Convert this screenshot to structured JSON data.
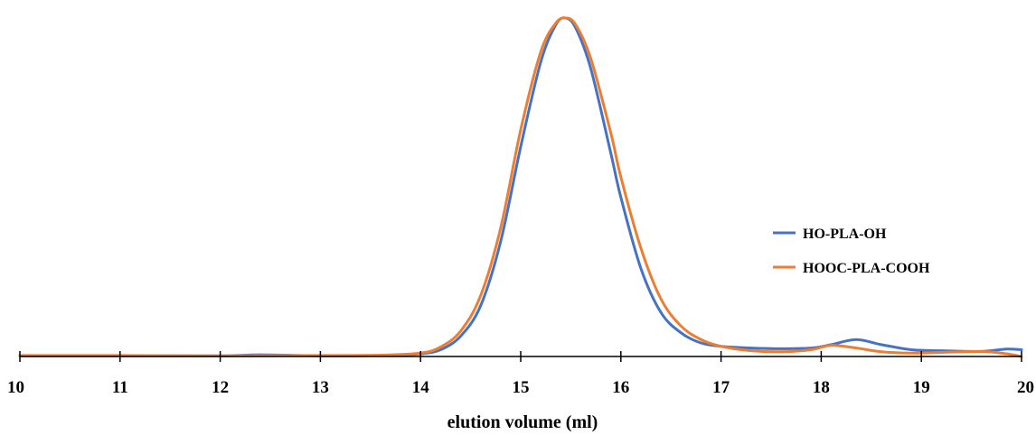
{
  "chart_data": {
    "type": "line",
    "title": "",
    "xlabel": "elution volume (ml)",
    "ylabel": "",
    "xlim": [
      10,
      20
    ],
    "ylim": [
      0,
      1
    ],
    "x_ticks": [
      "10",
      "11",
      "12",
      "13",
      "14",
      "15",
      "16",
      "17",
      "18",
      "19",
      "20"
    ],
    "grid": false,
    "legend": "center-right",
    "series": [
      {
        "name": "HO-PLA-OH",
        "color": "#4472C4",
        "x": [
          10,
          11,
          12,
          12.4,
          13,
          13.6,
          14,
          14.2,
          14.4,
          14.6,
          14.8,
          15.0,
          15.2,
          15.35,
          15.45,
          15.55,
          15.7,
          15.9,
          16.0,
          16.2,
          16.4,
          16.6,
          16.8,
          17.0,
          17.3,
          17.6,
          17.9,
          18.1,
          18.35,
          18.6,
          18.9,
          19.2,
          19.6,
          19.85,
          20
        ],
        "y": [
          0.002,
          0.002,
          0.002,
          0.005,
          0.002,
          0.003,
          0.008,
          0.02,
          0.06,
          0.15,
          0.34,
          0.62,
          0.87,
          0.98,
          1.0,
          0.97,
          0.85,
          0.6,
          0.47,
          0.26,
          0.13,
          0.07,
          0.04,
          0.03,
          0.025,
          0.023,
          0.025,
          0.035,
          0.05,
          0.035,
          0.02,
          0.017,
          0.015,
          0.022,
          0.02
        ]
      },
      {
        "name": "HOOC-PLA-COOH",
        "color": "#ED7D31",
        "x": [
          10,
          11,
          12,
          13,
          13.6,
          14,
          14.2,
          14.4,
          14.6,
          14.8,
          15.0,
          15.2,
          15.35,
          15.45,
          15.55,
          15.7,
          15.9,
          16.0,
          16.2,
          16.4,
          16.6,
          16.8,
          17.0,
          17.3,
          17.6,
          17.9,
          18.1,
          18.35,
          18.6,
          18.9,
          19.2,
          19.6,
          19.85,
          20
        ],
        "y": [
          0.003,
          0.003,
          0.002,
          0.003,
          0.004,
          0.01,
          0.028,
          0.075,
          0.18,
          0.38,
          0.67,
          0.9,
          0.985,
          1.0,
          0.98,
          0.88,
          0.66,
          0.53,
          0.32,
          0.17,
          0.09,
          0.05,
          0.03,
          0.017,
          0.014,
          0.02,
          0.033,
          0.025,
          0.014,
          0.01,
          0.012,
          0.015,
          0.008,
          0.0
        ]
      }
    ]
  }
}
